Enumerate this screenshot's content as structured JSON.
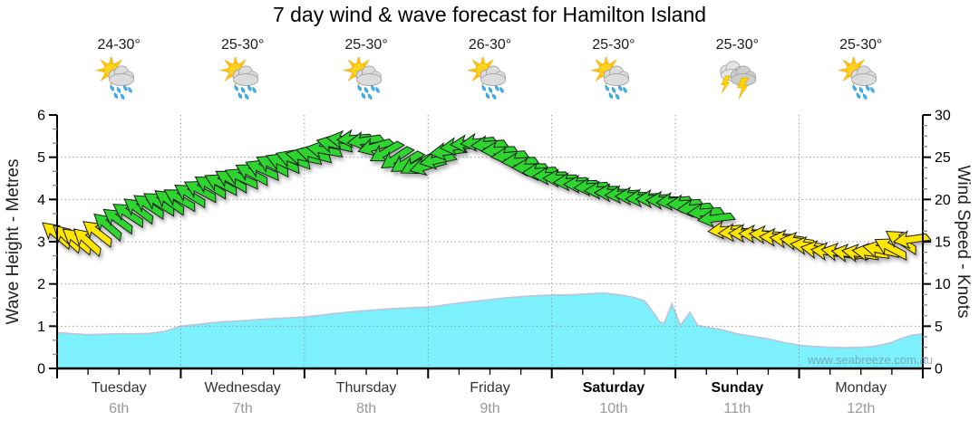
{
  "title": "7 day wind & wave forecast for Hamilton Island",
  "watermark": "www.seabreeze.com.au",
  "days": [
    {
      "name": "Tuesday",
      "date": "6th",
      "temp": "24-30°",
      "icon": "showers",
      "weekend": false
    },
    {
      "name": "Wednesday",
      "date": "7th",
      "temp": "25-30°",
      "icon": "showers",
      "weekend": false
    },
    {
      "name": "Thursday",
      "date": "8th",
      "temp": "25-30°",
      "icon": "showers",
      "weekend": false
    },
    {
      "name": "Friday",
      "date": "9th",
      "temp": "26-30°",
      "icon": "showers",
      "weekend": false
    },
    {
      "name": "Saturday",
      "date": "10th",
      "temp": "25-30°",
      "icon": "showers",
      "weekend": true
    },
    {
      "name": "Sunday",
      "date": "11th",
      "temp": "25-30°",
      "icon": "storm",
      "weekend": true
    },
    {
      "name": "Monday",
      "date": "12th",
      "temp": "25-30°",
      "icon": "showers",
      "weekend": false
    }
  ],
  "axes": {
    "left": {
      "title": "Wave Height - Metres",
      "ticks": [
        0,
        1,
        2,
        3,
        4,
        5,
        6
      ]
    },
    "right": {
      "title": "Wind Speed - Knots",
      "ticks": [
        0,
        5,
        10,
        15,
        20,
        25,
        30
      ]
    }
  },
  "colors": {
    "title": "#000000",
    "wave_fill": "#7CF0FB",
    "wave_edge": "#BFC3D9",
    "arrow_yellow": "#FFE600",
    "arrow_green": "#2FD52F",
    "arrow_outline": "#1A1A1A",
    "grid": "#999999",
    "axis": "#000000",
    "minor_tick": "#8C8C8C",
    "sun": "#FFD21E",
    "ray": "#FFC40D",
    "cloud": "#DCDCDC",
    "cloud_dark": "#CDCDCD",
    "rain": "#3FB0E8",
    "lightning": "#FFD500"
  },
  "chart_data": {
    "type": "area",
    "title": "7 day wind & wave forecast for Hamilton Island",
    "x_axis": {
      "unit": "hours from Tuesday 00:00",
      "range": [
        0,
        168
      ],
      "day_tick_every_h": 24,
      "minor_tick_every_h": 6
    },
    "y_left": {
      "label": "Wave Height - Metres",
      "range": [
        0,
        6
      ],
      "gridlines": [
        1,
        2,
        3,
        4,
        5
      ]
    },
    "y_right": {
      "label": "Wind Speed - Knots",
      "range": [
        0,
        30
      ],
      "gridlines": [
        5,
        10,
        15,
        20,
        25
      ]
    },
    "wave_height_m": [
      [
        0,
        0.85
      ],
      [
        3,
        0.82
      ],
      [
        6,
        0.8
      ],
      [
        9,
        0.81
      ],
      [
        12,
        0.82
      ],
      [
        15,
        0.82
      ],
      [
        18,
        0.83
      ],
      [
        21,
        0.88
      ],
      [
        24,
        1.0
      ],
      [
        27,
        1.04
      ],
      [
        30,
        1.08
      ],
      [
        33,
        1.11
      ],
      [
        36,
        1.13
      ],
      [
        39,
        1.16
      ],
      [
        42,
        1.18
      ],
      [
        45,
        1.2
      ],
      [
        48,
        1.22
      ],
      [
        51,
        1.26
      ],
      [
        54,
        1.3
      ],
      [
        57,
        1.34
      ],
      [
        60,
        1.37
      ],
      [
        63,
        1.4
      ],
      [
        66,
        1.42
      ],
      [
        69,
        1.44
      ],
      [
        72,
        1.45
      ],
      [
        75,
        1.5
      ],
      [
        78,
        1.55
      ],
      [
        81,
        1.59
      ],
      [
        84,
        1.63
      ],
      [
        87,
        1.67
      ],
      [
        90,
        1.7
      ],
      [
        93,
        1.72
      ],
      [
        96,
        1.74
      ],
      [
        99,
        1.74
      ],
      [
        102,
        1.76
      ],
      [
        106,
        1.79
      ],
      [
        108,
        1.76
      ],
      [
        110,
        1.73
      ],
      [
        112,
        1.68
      ],
      [
        114,
        1.6
      ],
      [
        115,
        1.45
      ],
      [
        117,
        1.1
      ],
      [
        117.8,
        1.07
      ],
      [
        119.3,
        1.53
      ],
      [
        121,
        1.02
      ],
      [
        122.8,
        1.33
      ],
      [
        124.3,
        1.02
      ],
      [
        126,
        0.98
      ],
      [
        129,
        0.92
      ],
      [
        132,
        0.82
      ],
      [
        135,
        0.76
      ],
      [
        138,
        0.7
      ],
      [
        141,
        0.62
      ],
      [
        144,
        0.55
      ],
      [
        147,
        0.52
      ],
      [
        150,
        0.5
      ],
      [
        153,
        0.49
      ],
      [
        156,
        0.5
      ],
      [
        159,
        0.53
      ],
      [
        162,
        0.62
      ],
      [
        164,
        0.72
      ],
      [
        166,
        0.79
      ],
      [
        168,
        0.82
      ]
    ],
    "wind_arrows": {
      "columns": [
        "hour",
        "knots",
        "pointing_deg_ccw_from_east"
      ],
      "green_at_or_above_knots": 16.6,
      "points": [
        [
          0,
          15.8,
          140
        ],
        [
          2,
          15.4,
          137
        ],
        [
          4,
          15.1,
          141
        ],
        [
          6,
          15.0,
          138
        ],
        [
          8,
          16.0,
          142
        ],
        [
          10,
          16.8,
          139
        ],
        [
          12,
          17.5,
          144
        ],
        [
          14,
          18.2,
          147
        ],
        [
          16,
          18.7,
          143
        ],
        [
          18,
          19.2,
          146
        ],
        [
          20,
          19.5,
          148
        ],
        [
          22,
          19.7,
          144
        ],
        [
          24,
          20.0,
          150
        ],
        [
          26,
          20.5,
          148
        ],
        [
          28,
          21.0,
          152
        ],
        [
          30,
          21.5,
          149
        ],
        [
          32,
          21.8,
          153
        ],
        [
          34,
          22.2,
          150
        ],
        [
          36,
          22.5,
          155
        ],
        [
          38,
          23.0,
          152
        ],
        [
          40,
          23.5,
          156
        ],
        [
          42,
          24.0,
          153
        ],
        [
          44,
          24.3,
          157
        ],
        [
          46,
          24.7,
          160
        ],
        [
          48,
          25.0,
          168
        ],
        [
          50,
          25.3,
          165
        ],
        [
          52,
          25.8,
          170
        ],
        [
          54,
          26.5,
          167
        ],
        [
          56,
          27.0,
          172
        ],
        [
          58,
          27.2,
          184
        ],
        [
          60,
          27.0,
          188
        ],
        [
          62,
          26.3,
          196
        ],
        [
          64,
          25.7,
          210
        ],
        [
          66,
          25.0,
          214
        ],
        [
          68,
          24.5,
          212
        ],
        [
          70,
          24.2,
          208
        ],
        [
          72,
          24.0,
          196
        ],
        [
          74,
          24.7,
          192
        ],
        [
          76,
          25.7,
          188
        ],
        [
          78,
          26.3,
          186
        ],
        [
          80,
          26.6,
          183
        ],
        [
          82,
          26.8,
          186
        ],
        [
          84,
          26.5,
          184
        ],
        [
          86,
          25.8,
          182
        ],
        [
          88,
          25.2,
          185
        ],
        [
          90,
          24.5,
          183
        ],
        [
          92,
          23.8,
          181
        ],
        [
          94,
          23.3,
          184
        ],
        [
          96,
          22.8,
          182
        ],
        [
          98,
          22.5,
          180
        ],
        [
          100,
          22.1,
          183
        ],
        [
          102,
          21.8,
          181
        ],
        [
          104,
          21.5,
          184
        ],
        [
          106,
          21.1,
          182
        ],
        [
          108,
          20.8,
          180
        ],
        [
          110,
          20.6,
          183
        ],
        [
          112,
          20.4,
          181
        ],
        [
          114,
          20.2,
          184
        ],
        [
          116,
          20.1,
          182
        ],
        [
          118,
          19.9,
          180
        ],
        [
          120,
          19.8,
          185
        ],
        [
          122,
          19.5,
          183
        ],
        [
          124,
          19.0,
          186
        ],
        [
          126,
          18.5,
          184
        ],
        [
          128,
          17.8,
          187
        ],
        [
          130,
          16.4,
          185
        ],
        [
          132,
          16.1,
          183
        ],
        [
          134,
          16.0,
          180
        ],
        [
          136,
          15.9,
          178
        ],
        [
          138,
          15.8,
          176
        ],
        [
          140,
          15.5,
          178
        ],
        [
          142,
          15.3,
          175
        ],
        [
          144,
          15.0,
          172
        ],
        [
          146,
          14.5,
          174
        ],
        [
          148,
          14.0,
          171
        ],
        [
          150,
          13.8,
          173
        ],
        [
          152,
          13.7,
          170
        ],
        [
          154,
          13.6,
          172
        ],
        [
          156,
          13.6,
          171
        ],
        [
          158,
          13.7,
          173
        ],
        [
          160,
          14.0,
          168
        ],
        [
          162,
          14.2,
          152
        ],
        [
          164,
          15.0,
          147
        ],
        [
          166,
          15.3,
          188
        ]
      ]
    }
  }
}
